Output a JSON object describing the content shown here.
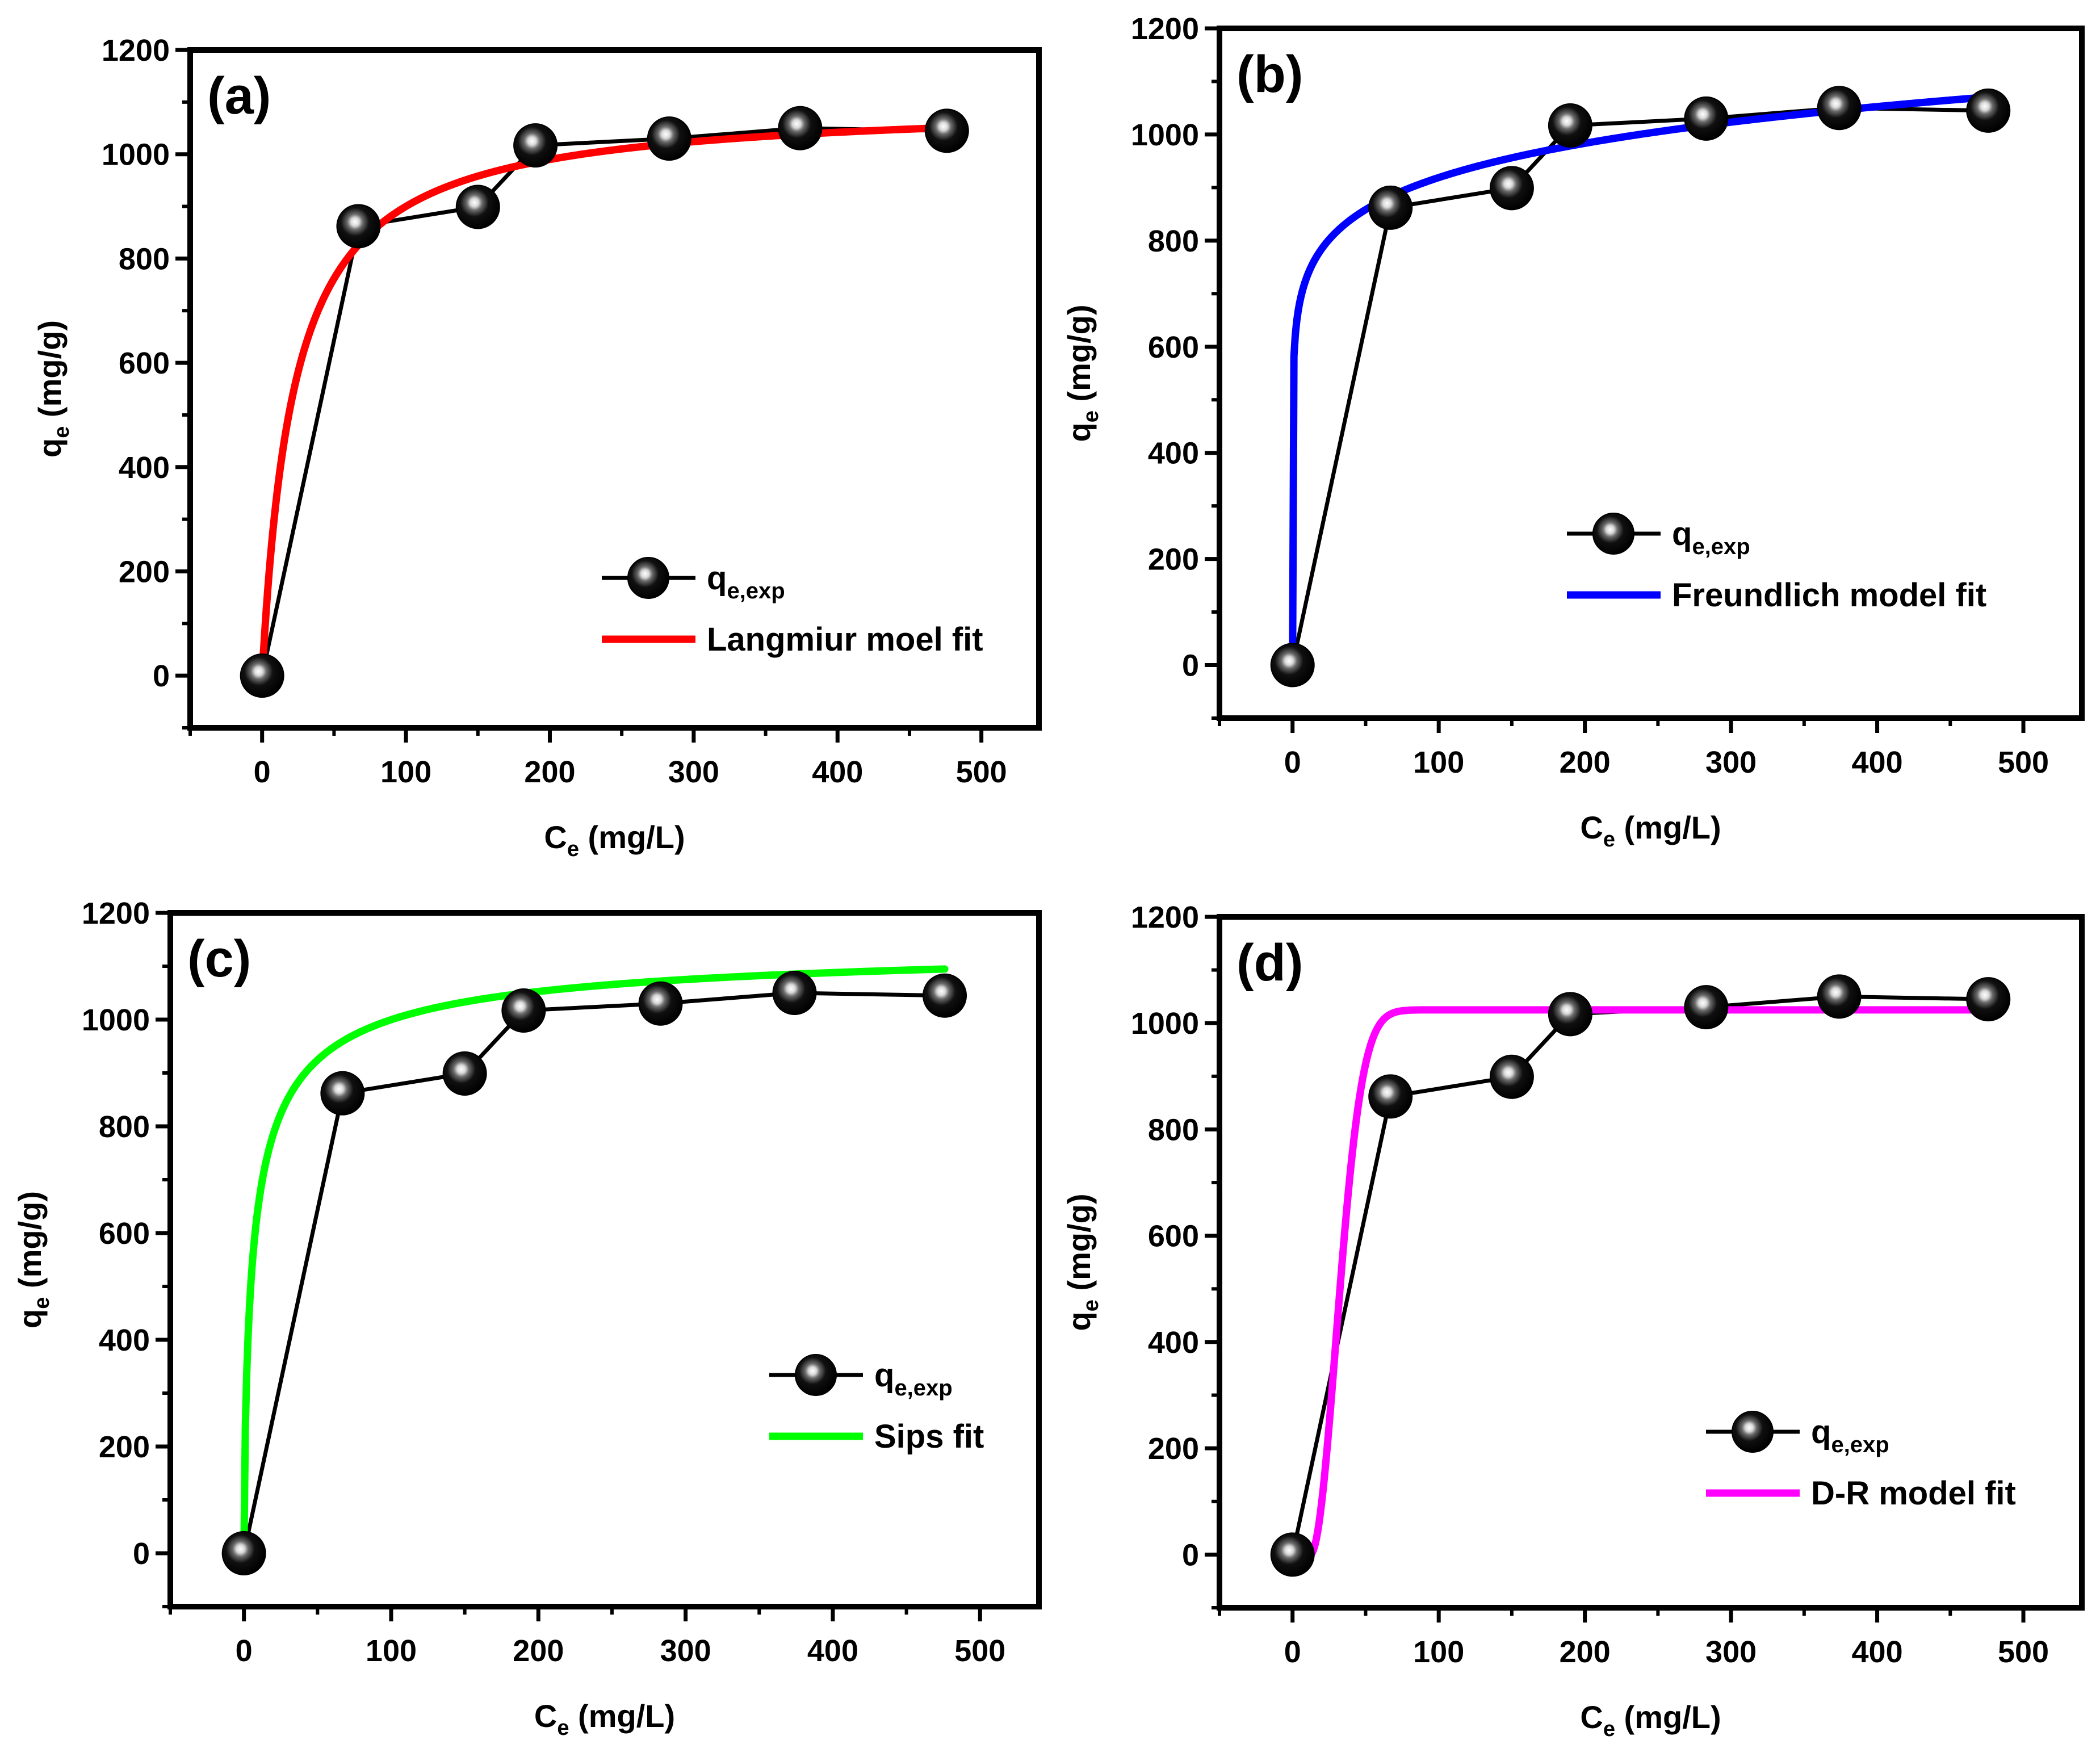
{
  "chart_data": [
    {
      "type": "scatter",
      "panel_label": "(a)",
      "xlabel": {
        "main": "C",
        "sub": "e",
        "unit": " (mg/L)"
      },
      "ylabel": {
        "main": "q",
        "sub": "e",
        "unit": " (mg/g)"
      },
      "xlim": [
        -50,
        540
      ],
      "ylim": [
        -100,
        1200
      ],
      "xticks": [
        0,
        100,
        200,
        300,
        400,
        500
      ],
      "yticks": [
        0,
        200,
        400,
        600,
        800,
        1000,
        1200
      ],
      "legend_position": "lower-right",
      "series": [
        {
          "name": "qe,exp",
          "label_main": "q",
          "label_sub": "e,exp",
          "type": "line+marker",
          "color": "#000000",
          "x": [
            0,
            67,
            150,
            190,
            283,
            374,
            476
          ],
          "y": [
            0,
            862,
            899,
            1017,
            1030,
            1050,
            1045
          ]
        },
        {
          "name": "Langmiur moel fit",
          "type": "line",
          "color": "#ff0000",
          "model": "langmuir",
          "params": {
            "qmax": 1100,
            "K": 0.045
          },
          "x_range": [
            0,
            476
          ]
        }
      ]
    },
    {
      "type": "scatter",
      "panel_label": "(b)",
      "xlabel": {
        "main": "C",
        "sub": "e",
        "unit": " (mg/L)"
      },
      "ylabel": {
        "main": "q",
        "sub": "e",
        "unit": " (mg/g)"
      },
      "xlim": [
        -50,
        540
      ],
      "ylim": [
        -100,
        1200
      ],
      "xticks": [
        0,
        100,
        200,
        300,
        400,
        500
      ],
      "yticks": [
        0,
        200,
        400,
        600,
        800,
        1000,
        1200
      ],
      "legend_position": "lower-right",
      "series": [
        {
          "name": "qe,exp",
          "label_main": "q",
          "label_sub": "e,exp",
          "type": "line+marker",
          "color": "#000000",
          "x": [
            0,
            67,
            150,
            190,
            283,
            374,
            476
          ],
          "y": [
            0,
            862,
            899,
            1017,
            1030,
            1050,
            1045
          ]
        },
        {
          "name": "Freundlich model fit",
          "type": "line",
          "color": "#0000ff",
          "model": "freundlich",
          "params": {
            "Kf": 585,
            "n": 10.2
          },
          "x_range": [
            0,
            476
          ]
        }
      ]
    },
    {
      "type": "scatter",
      "panel_label": "(c)",
      "xlabel": {
        "main": "C",
        "sub": "e",
        "unit": " (mg/L)"
      },
      "ylabel": {
        "main": "q",
        "sub": "e",
        "unit": " (mg/g)"
      },
      "xlim": [
        -50,
        540
      ],
      "ylim": [
        -100,
        1200
      ],
      "xticks": [
        0,
        100,
        200,
        300,
        400,
        500
      ],
      "yticks": [
        0,
        200,
        400,
        600,
        800,
        1000,
        1200
      ],
      "legend_position": "lower-right",
      "series": [
        {
          "name": "qe,exp",
          "label_main": "q",
          "label_sub": "e,exp",
          "type": "line+marker",
          "color": "#000000",
          "x": [
            0,
            67,
            150,
            190,
            283,
            374,
            476
          ],
          "y": [
            0,
            862,
            899,
            1017,
            1030,
            1050,
            1045
          ]
        },
        {
          "name": "Sips fit",
          "type": "line",
          "color": "#00ff00",
          "model": "sips",
          "params": {
            "qmax": 1150,
            "K": 0.15,
            "n": 0.7
          },
          "x_range": [
            0,
            476
          ]
        }
      ]
    },
    {
      "type": "scatter",
      "panel_label": "(d)",
      "xlabel": {
        "main": "C",
        "sub": "e",
        "unit": " (mg/L)"
      },
      "ylabel": {
        "main": "q",
        "sub": "e",
        "unit": " (mg/g)"
      },
      "xlim": [
        -50,
        540
      ],
      "ylim": [
        -100,
        1200
      ],
      "xticks": [
        0,
        100,
        200,
        300,
        400,
        500
      ],
      "yticks": [
        0,
        200,
        400,
        600,
        800,
        1000,
        1200
      ],
      "legend_position": "lower-right",
      "series": [
        {
          "name": "qe,exp",
          "label_main": "q",
          "label_sub": "e,exp",
          "type": "line+marker",
          "color": "#000000",
          "x": [
            0,
            67,
            150,
            190,
            283,
            374,
            476
          ],
          "y": [
            0,
            862,
            899,
            1017,
            1030,
            1050,
            1045
          ]
        },
        {
          "name": "D-R model fit",
          "type": "line",
          "color": "#ff00ff",
          "model": "dubinin-radushkevich",
          "params": {
            "qm": 1025,
            "x0": 12,
            "k": 0.0016
          },
          "x_range": [
            0,
            476
          ]
        }
      ]
    }
  ]
}
